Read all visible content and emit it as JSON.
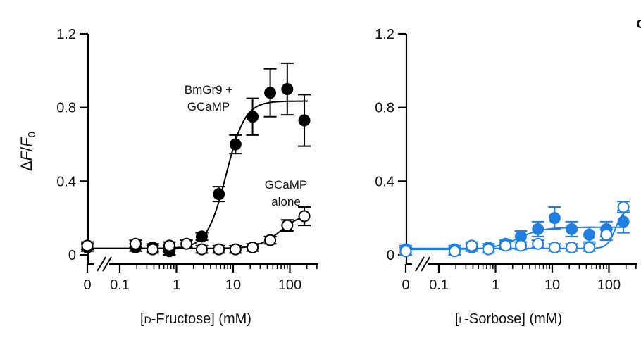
{
  "panel_letter": "c",
  "chart_data": [
    {
      "type": "scatter",
      "title": "",
      "xlabel": "[D-Fructose] (mM)",
      "xlabel_parts": [
        "[",
        "D",
        "-Fructose] (mM)"
      ],
      "ylabel": "ΔF/F0",
      "ylabel_parts": [
        "Δ",
        "F",
        "/",
        "F",
        "0"
      ],
      "x_scale": "log with broken axis at 0",
      "x_ticks": [
        "0",
        "0.1",
        "1",
        "10",
        "100"
      ],
      "xlim": [
        0.1,
        300
      ],
      "y_ticks": [
        "0",
        "0.4",
        "0.8",
        "1.2"
      ],
      "ylim": [
        0,
        1.2
      ],
      "grid": false,
      "series": [
        {
          "name": "BmGr9 + GCaMP",
          "label_lines": [
            "BmGr9 +",
            "GCaMP"
          ],
          "color": "#000000",
          "marker": "filled circle",
          "x_zero": 0.04,
          "points": [
            {
              "x": 0.19,
              "y": 0.04,
              "err": 0.02
            },
            {
              "x": 0.38,
              "y": 0.04,
              "err": 0.02
            },
            {
              "x": 0.75,
              "y": 0.02,
              "err": 0.02
            },
            {
              "x": 2.8,
              "y": 0.1,
              "err": 0.02
            },
            {
              "x": 5.6,
              "y": 0.33,
              "err": 0.04
            },
            {
              "x": 11,
              "y": 0.6,
              "err": 0.05
            },
            {
              "x": 22,
              "y": 0.75,
              "err": 0.1
            },
            {
              "x": 45,
              "y": 0.88,
              "err": 0.13
            },
            {
              "x": 90,
              "y": 0.9,
              "err": 0.14
            },
            {
              "x": 180,
              "y": 0.73,
              "err": 0.14
            }
          ],
          "fit": {
            "bottom": 0.035,
            "top": 0.835,
            "ec50": 7.5,
            "hill": 2.6
          }
        },
        {
          "name": "GCaMP alone",
          "label_lines": [
            "GCaMP",
            "alone"
          ],
          "color": "#000000",
          "marker": "open circle",
          "x_zero": 0.05,
          "points": [
            {
              "x": 0.19,
              "y": 0.06,
              "err": 0.02
            },
            {
              "x": 0.38,
              "y": 0.03,
              "err": 0.02
            },
            {
              "x": 0.75,
              "y": 0.05,
              "err": 0.02
            },
            {
              "x": 1.5,
              "y": 0.06,
              "err": 0.02
            },
            {
              "x": 2.8,
              "y": 0.03,
              "err": 0.02
            },
            {
              "x": 5.6,
              "y": 0.03,
              "err": 0.02
            },
            {
              "x": 11,
              "y": 0.03,
              "err": 0.02
            },
            {
              "x": 22,
              "y": 0.04,
              "err": 0.02
            },
            {
              "x": 45,
              "y": 0.08,
              "err": 0.02
            },
            {
              "x": 90,
              "y": 0.16,
              "err": 0.03
            },
            {
              "x": 180,
              "y": 0.21,
              "err": 0.05
            }
          ],
          "fit": {
            "bottom": 0.035,
            "top": 0.23,
            "ec50": 70,
            "hill": 2.2
          }
        }
      ]
    },
    {
      "type": "scatter",
      "title": "",
      "xlabel": "[L-Sorbose] (mM)",
      "xlabel_parts": [
        "[",
        "L",
        "-Sorbose] (mM)"
      ],
      "ylabel": "",
      "x_scale": "log with broken axis at 0",
      "x_ticks": [
        "0",
        "0.1",
        "1",
        "10",
        "100"
      ],
      "xlim": [
        0.1,
        300
      ],
      "y_ticks": [
        "0",
        "0.4",
        "0.8",
        "1.2"
      ],
      "ylim": [
        0,
        1.2
      ],
      "grid": false,
      "series": [
        {
          "name": "",
          "color": "#1e7fe0",
          "marker": "filled circle",
          "x_zero": 0.03,
          "points": [
            {
              "x": 0.19,
              "y": 0.03,
              "err": 0.02
            },
            {
              "x": 0.38,
              "y": 0.04,
              "err": 0.02
            },
            {
              "x": 0.75,
              "y": 0.04,
              "err": 0.02
            },
            {
              "x": 1.5,
              "y": 0.06,
              "err": 0.02
            },
            {
              "x": 2.8,
              "y": 0.1,
              "err": 0.03
            },
            {
              "x": 5.6,
              "y": 0.14,
              "err": 0.04
            },
            {
              "x": 11,
              "y": 0.2,
              "err": 0.06
            },
            {
              "x": 22,
              "y": 0.14,
              "err": 0.04
            },
            {
              "x": 45,
              "y": 0.11,
              "err": 0.04
            },
            {
              "x": 90,
              "y": 0.14,
              "err": 0.04
            },
            {
              "x": 180,
              "y": 0.18,
              "err": 0.06
            }
          ],
          "fit": {
            "bottom": 0.03,
            "top": 0.15,
            "ec50": 2.5,
            "hill": 2.0
          }
        },
        {
          "name": "",
          "color": "#1e7fe0",
          "marker": "open circle",
          "x_zero": 0.02,
          "points": [
            {
              "x": 0.19,
              "y": 0.02,
              "err": 0.02
            },
            {
              "x": 0.38,
              "y": 0.05,
              "err": 0.02
            },
            {
              "x": 0.75,
              "y": 0.03,
              "err": 0.02
            },
            {
              "x": 1.5,
              "y": 0.05,
              "err": 0.02
            },
            {
              "x": 2.8,
              "y": 0.05,
              "err": 0.02
            },
            {
              "x": 5.6,
              "y": 0.06,
              "err": 0.02
            },
            {
              "x": 11,
              "y": 0.04,
              "err": 0.02
            },
            {
              "x": 22,
              "y": 0.04,
              "err": 0.02
            },
            {
              "x": 45,
              "y": 0.04,
              "err": 0.02
            },
            {
              "x": 90,
              "y": 0.11,
              "err": 0.03
            },
            {
              "x": 180,
              "y": 0.26,
              "err": 0.03
            }
          ],
          "fit": {
            "bottom": 0.035,
            "top": 0.25,
            "ec50": 130,
            "hill": 6
          }
        }
      ]
    }
  ]
}
